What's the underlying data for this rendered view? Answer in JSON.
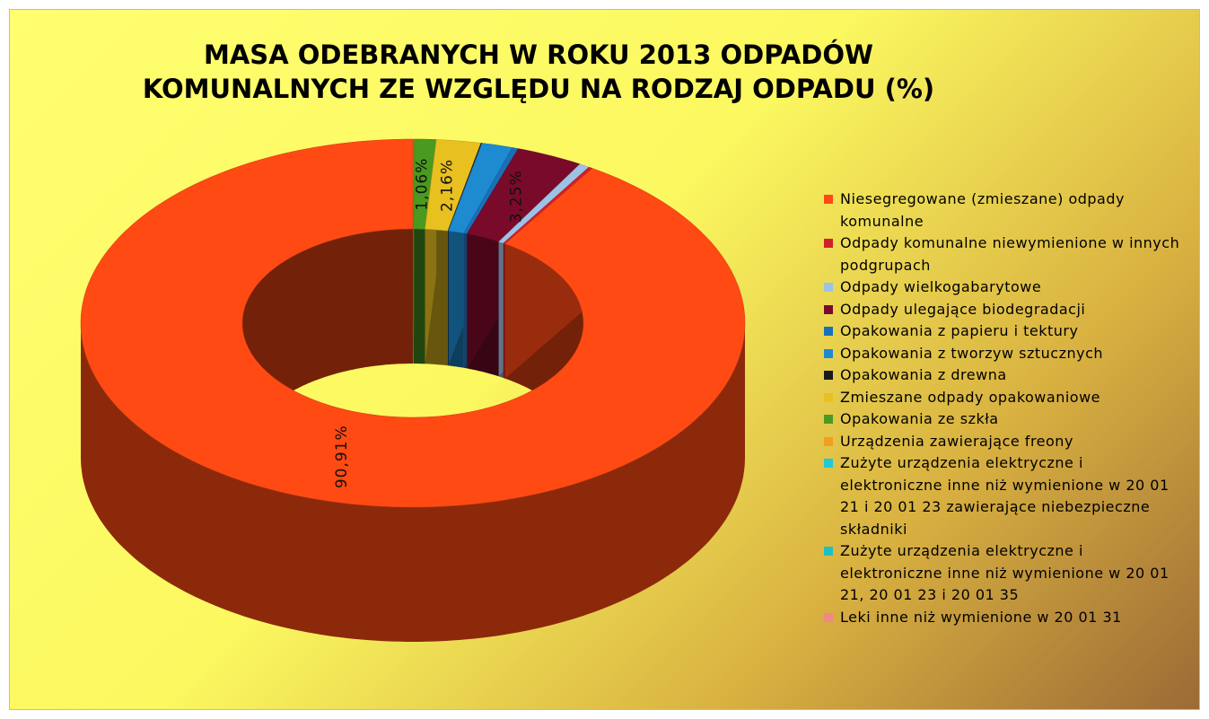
{
  "chart_data": {
    "type": "donut3d",
    "title": "MASA ODEBRANYCH W ROKU 2013 ODPADÓW KOMUNALNYCH ZE WZGLĘDU NA RODZAJ ODPADU (%)",
    "categories": [
      "Niesegregowane (zmieszane) odpady komunalne",
      "Odpady komunalne niewymienione w innych podgrupach",
      "Odpady wielkogabarytowe",
      "Odpady ulegające biodegradacji",
      "Opakowania z papieru i tektury",
      "Opakowania z tworzyw sztucznych",
      "Opakowania z drewna",
      "Zmieszane odpady opakowaniowe",
      "Opakowania ze szkła",
      "Urządzenia zawierające freony",
      "Zużyte urządzenia elektryczne i elektroniczne inne niż wymienione w 20 01 21 i 20 01 23 zawierające niebezpieczne składniki",
      "Zużyte urządzenia elektryczne i elektroniczne inne niż wymienione w 20 01 21, 20 01 23 i 20 01 35",
      "Leki inne niż wymienione w 20 01 31"
    ],
    "values": [
      90.91,
      0.2,
      0.5,
      3.25,
      0.3,
      1.5,
      0.05,
      2.16,
      1.06,
      0.02,
      0.02,
      0.02,
      0.01
    ],
    "value_labels": [
      "90,91%",
      null,
      null,
      "3,25%",
      null,
      null,
      null,
      "2,16%",
      "1,06%",
      null,
      null,
      null,
      null
    ],
    "colors": [
      "#ff4a14",
      "#d0202a",
      "#9cc3e6",
      "#7a0a2a",
      "#1a70b8",
      "#1e8ad0",
      "#1a1a1a",
      "#e8c020",
      "#4a9a20",
      "#f0a020",
      "#20c8d8",
      "#20c0c0",
      "#f08888"
    ],
    "legend": "right"
  }
}
